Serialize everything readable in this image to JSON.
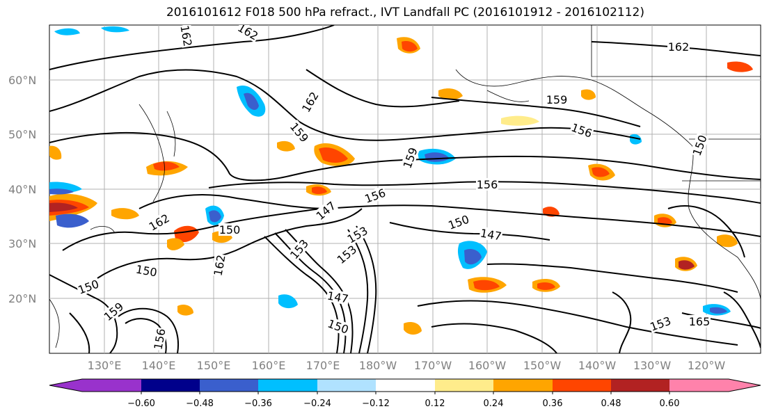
{
  "title": "2016101612 F018 500 hPa refract., IVT Landfall PC (2016101912 - 2016102112)",
  "lat_labels": [
    "60°N",
    "50°N",
    "40°N",
    "30°N",
    "20°N"
  ],
  "lon_labels": [
    "130°E",
    "140°E",
    "150°E",
    "160°E",
    "170°E",
    "180°W",
    "170°W",
    "160°W",
    "150°W",
    "140°W",
    "130°W",
    "120°W"
  ],
  "colorbar": {
    "ticks": [
      "−0.60",
      "−0.48",
      "−0.36",
      "−0.24",
      "−0.12",
      "0.12",
      "0.24",
      "0.36",
      "0.48",
      "0.60"
    ],
    "colors": [
      "#9932cc",
      "#00008b",
      "#3a5fcd",
      "#00bfff",
      "#b0e2ff",
      "#ffffff",
      "#ffec8b",
      "#ffa500",
      "#ff4500",
      "#b22222",
      "#ff82ab"
    ]
  },
  "contour_labels": [
    "162",
    "162",
    "162",
    "162",
    "159",
    "159",
    "159",
    "156",
    "156",
    "156",
    "153",
    "153",
    "153",
    "150",
    "150",
    "150",
    "147",
    "147",
    "147",
    "150",
    "156",
    "153",
    "165",
    "159",
    "162",
    "162",
    "150",
    "150"
  ]
}
